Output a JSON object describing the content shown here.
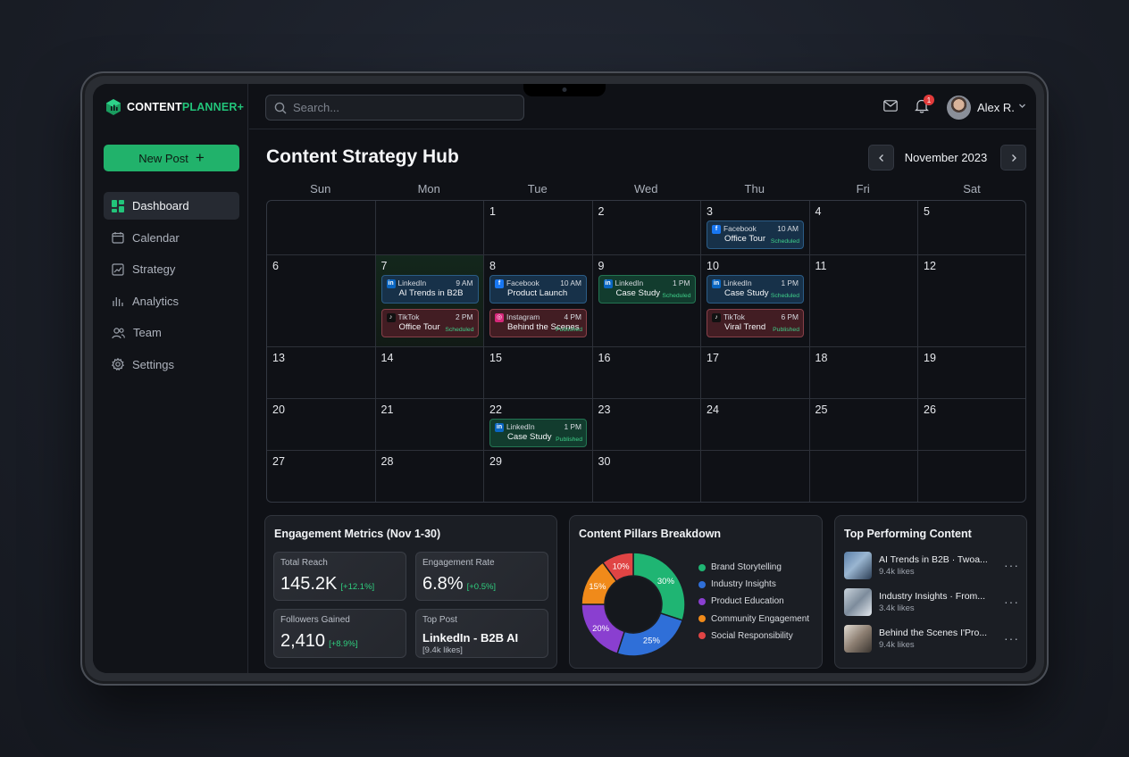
{
  "app": {
    "logo_part1": "CONTENT",
    "logo_part2": "PLANNER+",
    "accent": "#21b26b"
  },
  "sidebar": {
    "new_post": "New Post",
    "items": [
      {
        "label": "Dashboard",
        "icon": "dashboard-icon",
        "active": true
      },
      {
        "label": "Calendar",
        "icon": "calendar-icon"
      },
      {
        "label": "Strategy",
        "icon": "strategy-icon"
      },
      {
        "label": "Analytics",
        "icon": "analytics-icon"
      },
      {
        "label": "Team",
        "icon": "team-icon"
      },
      {
        "label": "Settings",
        "icon": "settings-icon"
      }
    ]
  },
  "topbar": {
    "search_placeholder": "Search...",
    "notifications": "1",
    "user_name": "Alex R."
  },
  "calendar": {
    "title": "Content Strategy Hub",
    "month": "November 2023",
    "days_of_week": [
      "Sun",
      "Mon",
      "Tue",
      "Wed",
      "Thu",
      "Fri",
      "Sat"
    ],
    "weeks": [
      [
        "",
        "",
        "1",
        "2",
        "3",
        "4",
        "5"
      ],
      [
        "6",
        "7",
        "8",
        "9",
        "10",
        "11",
        "12"
      ],
      [
        "13",
        "14",
        "15",
        "16",
        "17",
        "18",
        "19"
      ],
      [
        "20",
        "21",
        "22",
        "23",
        "24",
        "25",
        "26"
      ],
      [
        "27",
        "28",
        "29",
        "30",
        "",
        "",
        ""
      ]
    ],
    "events": [
      {
        "platform": "Facebook",
        "time": "10 AM",
        "title": "Office Tour",
        "status": "Scheduled",
        "color": "blue"
      },
      {
        "platform": "LinkedIn",
        "time": "9 AM",
        "title": "AI Trends in B2B",
        "status": "",
        "color": "blue"
      },
      {
        "platform": "TikTok",
        "time": "2 PM",
        "title": "Office Tour",
        "status": "Scheduled",
        "color": "red"
      },
      {
        "platform": "Facebook",
        "time": "10 AM",
        "title": "Product Launch",
        "status": "",
        "color": "blue"
      },
      {
        "platform": "Instagram",
        "time": "4 PM",
        "title": "Behind the Scenes",
        "status": "Published",
        "color": "red"
      },
      {
        "platform": "LinkedIn",
        "time": "1 PM",
        "title": "Case Study",
        "status": "Scheduled",
        "color": "green"
      },
      {
        "platform": "LinkedIn",
        "time": "1 PM",
        "title": "Case Study",
        "status": "Scheduled",
        "color": "blue"
      },
      {
        "platform": "TikTok",
        "time": "6 PM",
        "title": "Viral Trend",
        "status": "Published",
        "color": "red"
      },
      {
        "platform": "LinkedIn",
        "time": "1 PM",
        "title": "Case Study",
        "status": "Published",
        "color": "green"
      }
    ]
  },
  "engagement": {
    "title": "Engagement Metrics (Nov 1-30)",
    "total_reach": {
      "label": "Total Reach",
      "value": "145.2K",
      "change": "[+12.1%]"
    },
    "engagement_rate": {
      "label": "Engagement Rate",
      "value": "6.8%",
      "change": "[+0.5%]"
    },
    "followers": {
      "label": "Followers Gained",
      "value": "2,410",
      "change": "[+8.9%]"
    },
    "top_post": {
      "label": "Top Post",
      "value": "LinkedIn - B2B AI",
      "sub": "[9.4k likes]"
    }
  },
  "pillars": {
    "title": "Content Pillars Breakdown",
    "slices": [
      {
        "name": "Brand Storytelling",
        "value": 30,
        "label": "30%",
        "color": "#1fb573"
      },
      {
        "name": "Industry Insights",
        "value": 25,
        "label": "25%",
        "color": "#2f6fd8"
      },
      {
        "name": "Product Education",
        "value": 20,
        "label": "20%",
        "color": "#8a3fd0"
      },
      {
        "name": "Community Engagement",
        "value": 15,
        "label": "15%",
        "color": "#f08a1a"
      },
      {
        "name": "Social Responsibility",
        "value": 10,
        "label": "10%",
        "color": "#e04444"
      }
    ]
  },
  "chart_data": {
    "type": "pie",
    "title": "Content Pillars Breakdown",
    "categories": [
      "Brand Storytelling",
      "Industry Insights",
      "Product Education",
      "Community Engagement",
      "Social Responsibility"
    ],
    "values": [
      30,
      25,
      20,
      15,
      10
    ],
    "legend": "right"
  },
  "top_content": {
    "title": "Top Performing Content",
    "items": [
      {
        "title": "AI Trends in B2B · Twoa...",
        "likes": "9.4k likes"
      },
      {
        "title": "Industry Insights · From...",
        "likes": "3.4k likes"
      },
      {
        "title": "Behind the Scenes I'Pro...",
        "likes": "9.4k likes"
      }
    ]
  }
}
